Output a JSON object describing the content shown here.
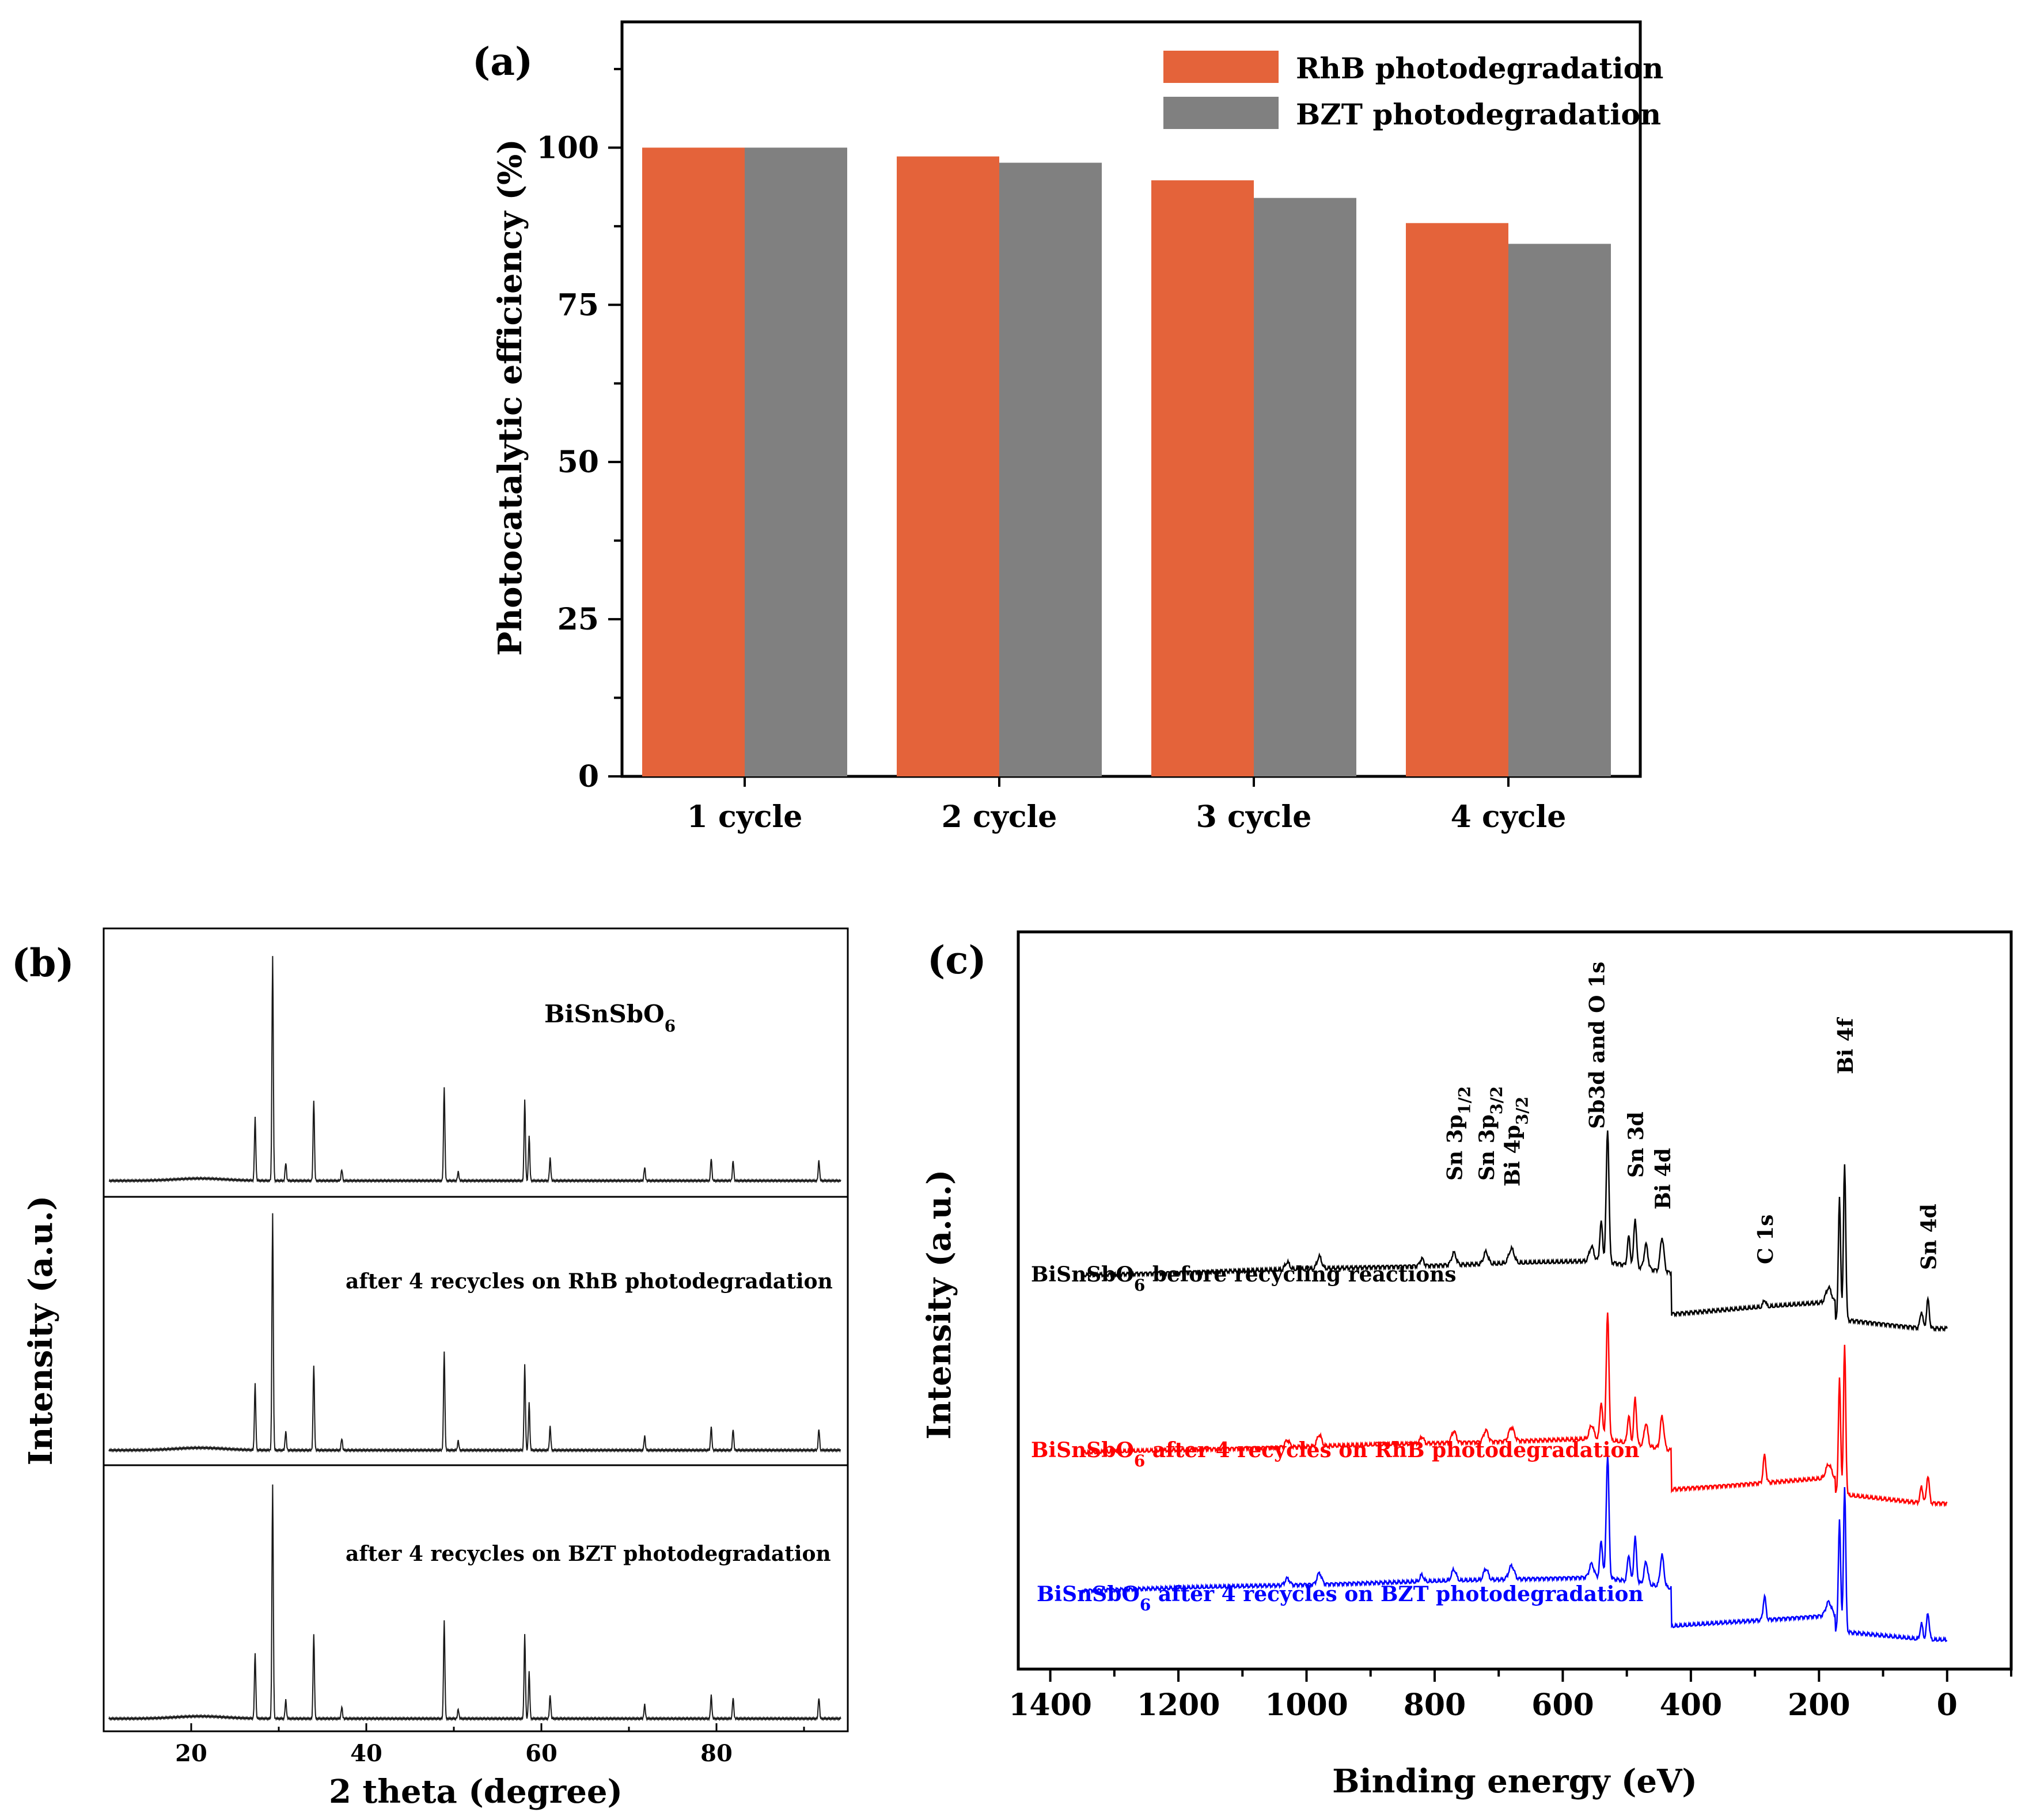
{
  "chart_data": [
    {
      "id": "a",
      "type": "bar",
      "panel_label": "(a)",
      "ylabel": "Photocatalytic efficiency  (%)",
      "xlabel": "",
      "categories": [
        "1 cycle",
        "2 cycle",
        "3 cycle",
        "4 cycle"
      ],
      "series": [
        {
          "name": "RhB photodegradation",
          "color": "#e4633a",
          "values": [
            100,
            98.6,
            94.8,
            88.0
          ]
        },
        {
          "name": "BZT photodegradation",
          "color": "#808080",
          "values": [
            100,
            97.6,
            92.0,
            84.7
          ]
        }
      ],
      "ylim": [
        0,
        120
      ],
      "yticks": [
        "0",
        "25",
        "50",
        "75",
        "100"
      ],
      "legend": "top-right",
      "grid": false
    },
    {
      "id": "b",
      "type": "line",
      "panel_label": "(b)",
      "xlabel": "2 theta (degree)",
      "ylabel": "Intensity (a.u.)",
      "xlim": [
        10,
        95
      ],
      "xticks": [
        "20",
        "40",
        "60",
        "80"
      ],
      "peaks_2theta": [
        27.3,
        29.3,
        30.8,
        34.0,
        37.2,
        48.9,
        50.5,
        58.1,
        58.6,
        61.0,
        71.8,
        79.4,
        81.9,
        91.7
      ],
      "series": [
        {
          "name": "BiSnSbO6",
          "label_main": "BiSnSbO",
          "label_sub": "6",
          "label_rest": ""
        },
        {
          "name": "after 4 recycles on RhB photodegradation",
          "label_main": "after 4 recycles on RhB photodegradation",
          "label_sub": "",
          "label_rest": ""
        },
        {
          "name": "after 4 recycles  on BZT photodegradation",
          "label_main": "after 4 recycles  on BZT photodegradation",
          "label_sub": "",
          "label_rest": ""
        }
      ]
    },
    {
      "id": "c",
      "type": "line",
      "panel_label": "(c)",
      "xlabel": "Binding energy (eV)",
      "ylabel": "Intensity (a.u.)",
      "xlim": [
        1450,
        -100
      ],
      "xticks": [
        "1400",
        "1200",
        "1000",
        "800",
        "600",
        "400",
        "200",
        "0"
      ],
      "peaks_eV": [
        1030,
        980,
        820,
        770,
        720,
        680,
        555,
        540,
        530,
        497,
        487,
        470,
        445,
        285,
        185,
        168,
        160,
        40,
        30
      ],
      "annotations": [
        {
          "text": "Sn 3p",
          "sub": "1/2",
          "ev": 770
        },
        {
          "text": "Sn 3p",
          "sub": "3/2",
          "ev": 720
        },
        {
          "text": "Bi 4p",
          "sub": "3/2",
          "ev": 680
        },
        {
          "text": "Sb3d and O 1s",
          "sub": "",
          "ev": 530
        },
        {
          "text": "Sn 3d",
          "sub": "",
          "ev": 487
        },
        {
          "text": "Bi 4d",
          "sub": "",
          "ev": 445
        },
        {
          "text": "C 1s",
          "sub": "",
          "ev": 285
        },
        {
          "text": "Bi 4f",
          "sub": "",
          "ev": 160
        },
        {
          "text": "Sn 4d",
          "sub": "",
          "ev": 30
        }
      ],
      "series": [
        {
          "name": "BiSnSbO6 before recycling reactions",
          "color": "#000000",
          "label_main": "BiSnSbO",
          "label_sub": "6",
          "label_rest": " before recycling reactions"
        },
        {
          "name": "BiSnSbO6 after 4 recycles on RhB photodegradation",
          "color": "#ff0000",
          "label_main": "BiSnSbO",
          "label_sub": "6",
          "label_rest": " after 4 recycles on RhB photodegradation"
        },
        {
          "name": "BiSnSbO6 after 4 recycles on BZT photodegradation",
          "color": "#0000ff",
          "label_main": "BiSnSbO",
          "label_sub": "6",
          "label_rest": " after 4 recycles on BZT photodegradation"
        }
      ]
    }
  ]
}
